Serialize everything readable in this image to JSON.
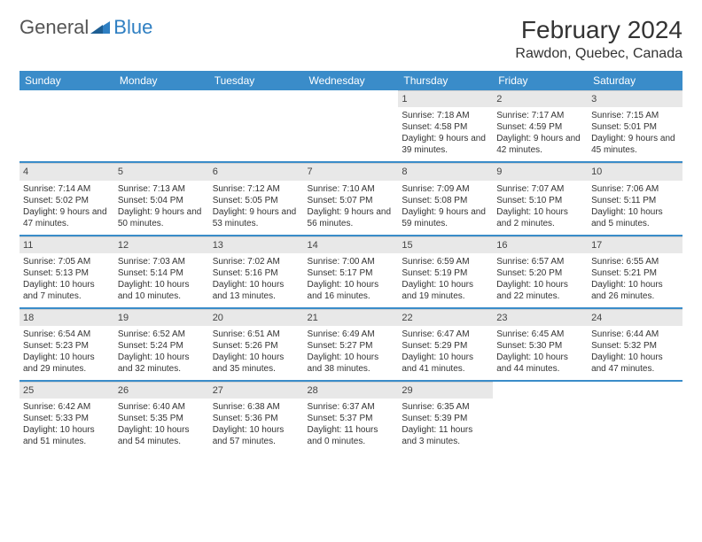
{
  "logo": {
    "text1": "General",
    "text2": "Blue"
  },
  "title": "February 2024",
  "location": "Rawdon, Quebec, Canada",
  "colors": {
    "header_bg": "#3a8cc9",
    "header_text": "#ffffff",
    "daynum_bg": "#e8e8e8",
    "row_sep": "#3a8cc9",
    "logo_blue": "#2f7fc2"
  },
  "weekdays": [
    "Sunday",
    "Monday",
    "Tuesday",
    "Wednesday",
    "Thursday",
    "Friday",
    "Saturday"
  ],
  "weeks": [
    [
      {
        "empty": true
      },
      {
        "empty": true
      },
      {
        "empty": true
      },
      {
        "empty": true
      },
      {
        "num": "1",
        "sunrise": "Sunrise: 7:18 AM",
        "sunset": "Sunset: 4:58 PM",
        "daylight": "Daylight: 9 hours and 39 minutes."
      },
      {
        "num": "2",
        "sunrise": "Sunrise: 7:17 AM",
        "sunset": "Sunset: 4:59 PM",
        "daylight": "Daylight: 9 hours and 42 minutes."
      },
      {
        "num": "3",
        "sunrise": "Sunrise: 7:15 AM",
        "sunset": "Sunset: 5:01 PM",
        "daylight": "Daylight: 9 hours and 45 minutes."
      }
    ],
    [
      {
        "num": "4",
        "sunrise": "Sunrise: 7:14 AM",
        "sunset": "Sunset: 5:02 PM",
        "daylight": "Daylight: 9 hours and 47 minutes."
      },
      {
        "num": "5",
        "sunrise": "Sunrise: 7:13 AM",
        "sunset": "Sunset: 5:04 PM",
        "daylight": "Daylight: 9 hours and 50 minutes."
      },
      {
        "num": "6",
        "sunrise": "Sunrise: 7:12 AM",
        "sunset": "Sunset: 5:05 PM",
        "daylight": "Daylight: 9 hours and 53 minutes."
      },
      {
        "num": "7",
        "sunrise": "Sunrise: 7:10 AM",
        "sunset": "Sunset: 5:07 PM",
        "daylight": "Daylight: 9 hours and 56 minutes."
      },
      {
        "num": "8",
        "sunrise": "Sunrise: 7:09 AM",
        "sunset": "Sunset: 5:08 PM",
        "daylight": "Daylight: 9 hours and 59 minutes."
      },
      {
        "num": "9",
        "sunrise": "Sunrise: 7:07 AM",
        "sunset": "Sunset: 5:10 PM",
        "daylight": "Daylight: 10 hours and 2 minutes."
      },
      {
        "num": "10",
        "sunrise": "Sunrise: 7:06 AM",
        "sunset": "Sunset: 5:11 PM",
        "daylight": "Daylight: 10 hours and 5 minutes."
      }
    ],
    [
      {
        "num": "11",
        "sunrise": "Sunrise: 7:05 AM",
        "sunset": "Sunset: 5:13 PM",
        "daylight": "Daylight: 10 hours and 7 minutes."
      },
      {
        "num": "12",
        "sunrise": "Sunrise: 7:03 AM",
        "sunset": "Sunset: 5:14 PM",
        "daylight": "Daylight: 10 hours and 10 minutes."
      },
      {
        "num": "13",
        "sunrise": "Sunrise: 7:02 AM",
        "sunset": "Sunset: 5:16 PM",
        "daylight": "Daylight: 10 hours and 13 minutes."
      },
      {
        "num": "14",
        "sunrise": "Sunrise: 7:00 AM",
        "sunset": "Sunset: 5:17 PM",
        "daylight": "Daylight: 10 hours and 16 minutes."
      },
      {
        "num": "15",
        "sunrise": "Sunrise: 6:59 AM",
        "sunset": "Sunset: 5:19 PM",
        "daylight": "Daylight: 10 hours and 19 minutes."
      },
      {
        "num": "16",
        "sunrise": "Sunrise: 6:57 AM",
        "sunset": "Sunset: 5:20 PM",
        "daylight": "Daylight: 10 hours and 22 minutes."
      },
      {
        "num": "17",
        "sunrise": "Sunrise: 6:55 AM",
        "sunset": "Sunset: 5:21 PM",
        "daylight": "Daylight: 10 hours and 26 minutes."
      }
    ],
    [
      {
        "num": "18",
        "sunrise": "Sunrise: 6:54 AM",
        "sunset": "Sunset: 5:23 PM",
        "daylight": "Daylight: 10 hours and 29 minutes."
      },
      {
        "num": "19",
        "sunrise": "Sunrise: 6:52 AM",
        "sunset": "Sunset: 5:24 PM",
        "daylight": "Daylight: 10 hours and 32 minutes."
      },
      {
        "num": "20",
        "sunrise": "Sunrise: 6:51 AM",
        "sunset": "Sunset: 5:26 PM",
        "daylight": "Daylight: 10 hours and 35 minutes."
      },
      {
        "num": "21",
        "sunrise": "Sunrise: 6:49 AM",
        "sunset": "Sunset: 5:27 PM",
        "daylight": "Daylight: 10 hours and 38 minutes."
      },
      {
        "num": "22",
        "sunrise": "Sunrise: 6:47 AM",
        "sunset": "Sunset: 5:29 PM",
        "daylight": "Daylight: 10 hours and 41 minutes."
      },
      {
        "num": "23",
        "sunrise": "Sunrise: 6:45 AM",
        "sunset": "Sunset: 5:30 PM",
        "daylight": "Daylight: 10 hours and 44 minutes."
      },
      {
        "num": "24",
        "sunrise": "Sunrise: 6:44 AM",
        "sunset": "Sunset: 5:32 PM",
        "daylight": "Daylight: 10 hours and 47 minutes."
      }
    ],
    [
      {
        "num": "25",
        "sunrise": "Sunrise: 6:42 AM",
        "sunset": "Sunset: 5:33 PM",
        "daylight": "Daylight: 10 hours and 51 minutes."
      },
      {
        "num": "26",
        "sunrise": "Sunrise: 6:40 AM",
        "sunset": "Sunset: 5:35 PM",
        "daylight": "Daylight: 10 hours and 54 minutes."
      },
      {
        "num": "27",
        "sunrise": "Sunrise: 6:38 AM",
        "sunset": "Sunset: 5:36 PM",
        "daylight": "Daylight: 10 hours and 57 minutes."
      },
      {
        "num": "28",
        "sunrise": "Sunrise: 6:37 AM",
        "sunset": "Sunset: 5:37 PM",
        "daylight": "Daylight: 11 hours and 0 minutes."
      },
      {
        "num": "29",
        "sunrise": "Sunrise: 6:35 AM",
        "sunset": "Sunset: 5:39 PM",
        "daylight": "Daylight: 11 hours and 3 minutes."
      },
      {
        "empty": true
      },
      {
        "empty": true
      }
    ]
  ]
}
